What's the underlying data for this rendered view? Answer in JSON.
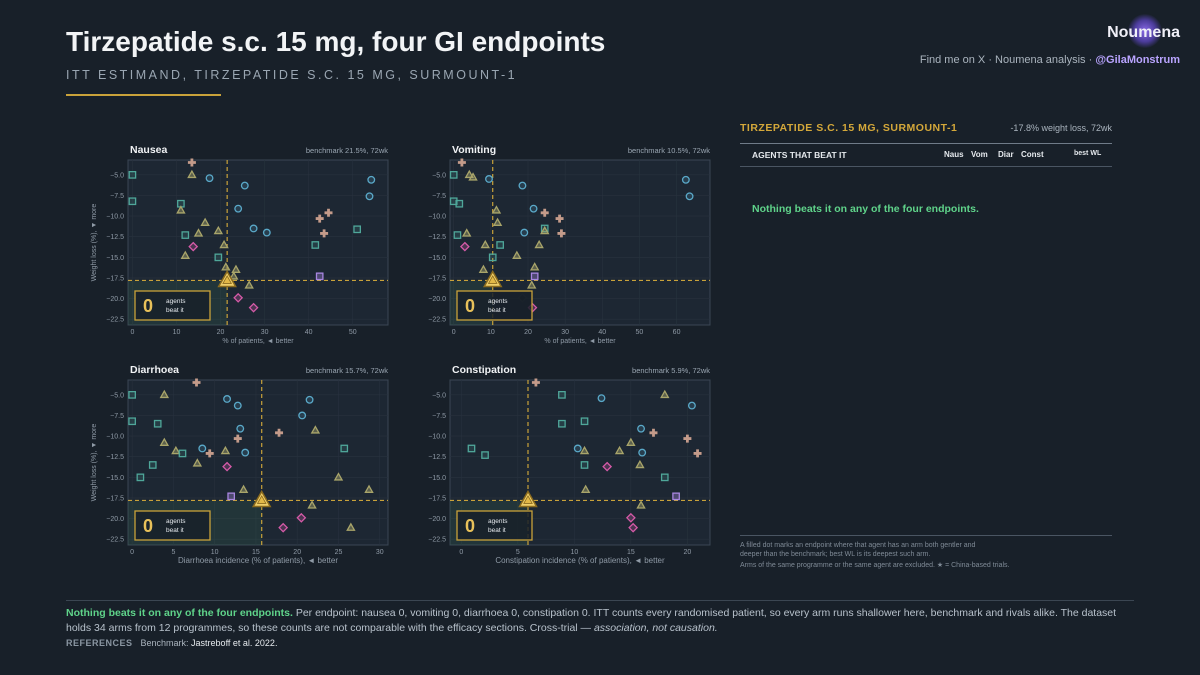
{
  "header": {
    "title": "Tirzepatide s.c. 15 mg,  four GI endpoints",
    "subtitle": "ITT ESTIMAND,  TIRZEPATIDE S.C. 15 MG, SURMOUNT-1",
    "brand": "Noumena",
    "byline_prefix": "Find me on X · Noumena analysis · ",
    "byline_handle": "@GilaMonstrum"
  },
  "colors": {
    "background": "#182029",
    "plot_bg": "#1d2733",
    "accent": "#c9a23a",
    "highlight_green": "#5fd38a",
    "teal": "#4fa79a",
    "blue": "#5aa9c9",
    "olive": "#a9a56a",
    "tan": "#c49b8a",
    "magenta": "#d65aa8",
    "purple": "#a886e0"
  },
  "right_panel": {
    "title": "TIRZEPATIDE S.C. 15 MG, SURMOUNT-1",
    "benchmark": "-17.8% weight loss, 72wk",
    "col_agents": "AGENTS THAT BEAT IT",
    "col_naus": "Naus",
    "col_vom": "Vom",
    "col_diar": "Diar",
    "col_const": "Const",
    "col_best": "best WL",
    "message": "Nothing beats it on any of the four endpoints.",
    "note_line1": "A filled dot marks an endpoint where that agent has an arm both gentler and",
    "note_line2": "deeper than the benchmark; best WL is its deepest such arm.",
    "note_line3": "Arms of the same programme or the same agent are excluded.  ★ = China-based trials."
  },
  "footer": {
    "highlight": "Nothing beats it on any of the four endpoints.",
    "text": "  Per endpoint: nausea 0, vomiting 0, diarrhoea 0, constipation 0.  ITT counts every randomised patient, so every arm runs shallower here, benchmark and rivals alike. The dataset holds 34 arms from 12 programmes, so these counts are not comparable with the efficacy sections. Cross-trial — ",
    "italic": "association, not causation.",
    "refs_label": "REFERENCES",
    "refs_prefix": "Benchmark: ",
    "refs_text": "Jastreboff et al. 2022."
  },
  "chart_data": [
    {
      "type": "scatter",
      "title": "Nausea",
      "benchmark_label": "benchmark 21.5%, 72wk",
      "xlabel": "% of patients, ◄ better",
      "ylabel": "Weight loss (%), ▼ more",
      "xlim": [
        -1,
        58
      ],
      "ylim": [
        -23.2,
        -3.2
      ],
      "xticks": [
        0,
        10,
        20,
        30,
        40,
        50
      ],
      "yticks": [
        -5.0,
        -7.5,
        -10.0,
        -12.5,
        -15.0,
        -17.5,
        -20.0,
        -22.5
      ],
      "benchmark": {
        "x": 21.5,
        "y": -17.8
      },
      "count": "0",
      "count_label_1": "agents",
      "count_label_2": "beat it",
      "points": [
        {
          "x": 13.5,
          "y": -3.5,
          "s": "cross",
          "c": "tan"
        },
        {
          "x": 13.5,
          "y": -5.0,
          "s": "tri",
          "c": "olive"
        },
        {
          "x": 0,
          "y": -5.0,
          "s": "sq",
          "c": "teal"
        },
        {
          "x": 0,
          "y": -8.2,
          "s": "sq",
          "c": "teal"
        },
        {
          "x": 11,
          "y": -8.5,
          "s": "sq",
          "c": "teal"
        },
        {
          "x": 11,
          "y": -9.3,
          "s": "tri",
          "c": "olive"
        },
        {
          "x": 17.5,
          "y": -5.4,
          "s": "circ",
          "c": "blue"
        },
        {
          "x": 25.5,
          "y": -6.3,
          "s": "circ",
          "c": "blue"
        },
        {
          "x": 54.2,
          "y": -5.6,
          "s": "circ",
          "c": "blue"
        },
        {
          "x": 53.8,
          "y": -7.6,
          "s": "circ",
          "c": "blue"
        },
        {
          "x": 24,
          "y": -9.1,
          "s": "circ",
          "c": "blue"
        },
        {
          "x": 16.5,
          "y": -10.8,
          "s": "tri",
          "c": "olive"
        },
        {
          "x": 19.5,
          "y": -11.8,
          "s": "tri",
          "c": "olive"
        },
        {
          "x": 15,
          "y": -12.1,
          "s": "tri",
          "c": "olive"
        },
        {
          "x": 12,
          "y": -12.3,
          "s": "sq",
          "c": "teal"
        },
        {
          "x": 27.5,
          "y": -11.5,
          "s": "circ",
          "c": "blue"
        },
        {
          "x": 30.5,
          "y": -12.0,
          "s": "circ",
          "c": "blue"
        },
        {
          "x": 42.5,
          "y": -10.3,
          "s": "cross",
          "c": "tan"
        },
        {
          "x": 44.5,
          "y": -9.6,
          "s": "cross",
          "c": "tan"
        },
        {
          "x": 43.5,
          "y": -12.1,
          "s": "cross",
          "c": "tan"
        },
        {
          "x": 51,
          "y": -11.6,
          "s": "sq",
          "c": "teal"
        },
        {
          "x": 41.5,
          "y": -13.5,
          "s": "sq",
          "c": "teal"
        },
        {
          "x": 13.8,
          "y": -13.7,
          "s": "dia",
          "c": "magenta"
        },
        {
          "x": 20.8,
          "y": -13.5,
          "s": "tri",
          "c": "olive"
        },
        {
          "x": 12,
          "y": -14.8,
          "s": "tri",
          "c": "olive"
        },
        {
          "x": 19.5,
          "y": -15.0,
          "s": "sq",
          "c": "teal"
        },
        {
          "x": 21.2,
          "y": -16.2,
          "s": "tri",
          "c": "olive"
        },
        {
          "x": 23.5,
          "y": -16.5,
          "s": "tri",
          "c": "olive"
        },
        {
          "x": 23,
          "y": -17.3,
          "s": "tri",
          "c": "olive"
        },
        {
          "x": 42.5,
          "y": -17.3,
          "s": "sq",
          "c": "purple"
        },
        {
          "x": 26.5,
          "y": -18.4,
          "s": "tri",
          "c": "olive"
        },
        {
          "x": 24,
          "y": -19.9,
          "s": "dia",
          "c": "magenta"
        },
        {
          "x": 27.5,
          "y": -21.1,
          "s": "dia",
          "c": "magenta"
        }
      ]
    },
    {
      "type": "scatter",
      "title": "Vomiting",
      "benchmark_label": "benchmark 10.5%, 72wk",
      "xlabel": "% of patients, ◄ better",
      "ylabel": "",
      "xlim": [
        -1,
        69
      ],
      "ylim": [
        -23.2,
        -3.2
      ],
      "xticks": [
        0,
        10,
        20,
        30,
        40,
        50,
        60
      ],
      "yticks": [
        -5.0,
        -7.5,
        -10.0,
        -12.5,
        -15.0,
        -17.5,
        -20.0,
        -22.5
      ],
      "benchmark": {
        "x": 10.5,
        "y": -17.8
      },
      "count": "0",
      "count_label_1": "agents",
      "count_label_2": "beat it",
      "points": [
        {
          "x": 2.2,
          "y": -3.5,
          "s": "cross",
          "c": "tan"
        },
        {
          "x": 0,
          "y": -5.0,
          "s": "sq",
          "c": "teal"
        },
        {
          "x": 4.2,
          "y": -5.0,
          "s": "tri",
          "c": "olive"
        },
        {
          "x": 5.2,
          "y": -5.3,
          "s": "tri",
          "c": "olive"
        },
        {
          "x": 18.5,
          "y": -6.3,
          "s": "circ",
          "c": "blue"
        },
        {
          "x": 9.5,
          "y": -5.5,
          "s": "circ",
          "c": "blue"
        },
        {
          "x": 62.5,
          "y": -5.6,
          "s": "circ",
          "c": "blue"
        },
        {
          "x": 63.5,
          "y": -7.6,
          "s": "circ",
          "c": "blue"
        },
        {
          "x": 0,
          "y": -8.2,
          "s": "sq",
          "c": "teal"
        },
        {
          "x": 1.5,
          "y": -8.5,
          "s": "sq",
          "c": "teal"
        },
        {
          "x": 21.5,
          "y": -9.1,
          "s": "circ",
          "c": "blue"
        },
        {
          "x": 11.5,
          "y": -9.3,
          "s": "tri",
          "c": "olive"
        },
        {
          "x": 24.5,
          "y": -9.6,
          "s": "cross",
          "c": "tan"
        },
        {
          "x": 28.5,
          "y": -10.3,
          "s": "cross",
          "c": "tan"
        },
        {
          "x": 11.8,
          "y": -10.8,
          "s": "tri",
          "c": "olive"
        },
        {
          "x": 24.5,
          "y": -11.5,
          "s": "sq",
          "c": "teal"
        },
        {
          "x": 24.5,
          "y": -11.8,
          "s": "tri",
          "c": "olive"
        },
        {
          "x": 29,
          "y": -12.1,
          "s": "cross",
          "c": "tan"
        },
        {
          "x": 19,
          "y": -12.0,
          "s": "circ",
          "c": "blue"
        },
        {
          "x": 1,
          "y": -12.3,
          "s": "sq",
          "c": "teal"
        },
        {
          "x": 3.5,
          "y": -12.1,
          "s": "tri",
          "c": "olive"
        },
        {
          "x": 12.5,
          "y": -13.5,
          "s": "sq",
          "c": "teal"
        },
        {
          "x": 3,
          "y": -13.7,
          "s": "dia",
          "c": "magenta"
        },
        {
          "x": 23,
          "y": -13.5,
          "s": "tri",
          "c": "olive"
        },
        {
          "x": 8.5,
          "y": -13.5,
          "s": "tri",
          "c": "olive"
        },
        {
          "x": 17,
          "y": -14.8,
          "s": "tri",
          "c": "olive"
        },
        {
          "x": 10.5,
          "y": -15.0,
          "s": "sq",
          "c": "teal"
        },
        {
          "x": 8,
          "y": -16.5,
          "s": "tri",
          "c": "olive"
        },
        {
          "x": 21.8,
          "y": -16.2,
          "s": "tri",
          "c": "olive"
        },
        {
          "x": 21.8,
          "y": -17.3,
          "s": "sq",
          "c": "purple"
        },
        {
          "x": 21,
          "y": -18.4,
          "s": "tri",
          "c": "olive"
        },
        {
          "x": 18.5,
          "y": -19.9,
          "s": "dia",
          "c": "dark"
        },
        {
          "x": 21.2,
          "y": -21.1,
          "s": "dia",
          "c": "magenta"
        }
      ]
    },
    {
      "type": "scatter",
      "title": "Diarrhoea",
      "benchmark_label": "benchmark 15.7%, 72wk",
      "xlabel": "Diarrhoea incidence (% of patients), ◄ better",
      "ylabel": "Weight loss (%), ▼ more",
      "xlim": [
        -0.5,
        31
      ],
      "ylim": [
        -23.2,
        -3.2
      ],
      "xticks": [
        0,
        5,
        10,
        15,
        20,
        25,
        30
      ],
      "yticks": [
        -5.0,
        -7.5,
        -10.0,
        -12.5,
        -15.0,
        -17.5,
        -20.0,
        -22.5
      ],
      "benchmark": {
        "x": 15.7,
        "y": -17.8
      },
      "count": "0",
      "count_label_1": "agents",
      "count_label_2": "beat it",
      "points": [
        {
          "x": 7.8,
          "y": -3.5,
          "s": "cross",
          "c": "tan"
        },
        {
          "x": 0,
          "y": -5.0,
          "s": "sq",
          "c": "teal"
        },
        {
          "x": 3.9,
          "y": -5.0,
          "s": "tri",
          "c": "olive"
        },
        {
          "x": 11.5,
          "y": -5.5,
          "s": "circ",
          "c": "blue"
        },
        {
          "x": 12.8,
          "y": -6.3,
          "s": "circ",
          "c": "blue"
        },
        {
          "x": 21.5,
          "y": -5.6,
          "s": "circ",
          "c": "blue"
        },
        {
          "x": 20.6,
          "y": -7.5,
          "s": "circ",
          "c": "blue"
        },
        {
          "x": 0,
          "y": -8.2,
          "s": "sq",
          "c": "teal"
        },
        {
          "x": 3.1,
          "y": -8.5,
          "s": "sq",
          "c": "teal"
        },
        {
          "x": 13.1,
          "y": -9.1,
          "s": "circ",
          "c": "blue"
        },
        {
          "x": 22.2,
          "y": -9.3,
          "s": "tri",
          "c": "olive"
        },
        {
          "x": 17.8,
          "y": -9.6,
          "s": "cross",
          "c": "tan"
        },
        {
          "x": 12.8,
          "y": -10.3,
          "s": "cross",
          "c": "tan"
        },
        {
          "x": 3.9,
          "y": -10.8,
          "s": "tri",
          "c": "olive"
        },
        {
          "x": 8.5,
          "y": -11.5,
          "s": "circ",
          "c": "blue"
        },
        {
          "x": 5.3,
          "y": -11.8,
          "s": "tri",
          "c": "olive"
        },
        {
          "x": 9.4,
          "y": -12.1,
          "s": "cross",
          "c": "tan"
        },
        {
          "x": 11.3,
          "y": -11.8,
          "s": "tri",
          "c": "olive"
        },
        {
          "x": 6.1,
          "y": -12.1,
          "s": "sq",
          "c": "teal"
        },
        {
          "x": 13.7,
          "y": -12.0,
          "s": "circ",
          "c": "blue"
        },
        {
          "x": 25.7,
          "y": -11.5,
          "s": "sq",
          "c": "teal"
        },
        {
          "x": 7.9,
          "y": -13.3,
          "s": "tri",
          "c": "olive"
        },
        {
          "x": 11.5,
          "y": -13.7,
          "s": "dia",
          "c": "magenta"
        },
        {
          "x": 2.5,
          "y": -13.5,
          "s": "sq",
          "c": "teal"
        },
        {
          "x": 1,
          "y": -15.0,
          "s": "sq",
          "c": "teal"
        },
        {
          "x": 25,
          "y": -15.0,
          "s": "tri",
          "c": "olive"
        },
        {
          "x": 13.5,
          "y": -16.5,
          "s": "tri",
          "c": "olive"
        },
        {
          "x": 28.7,
          "y": -16.5,
          "s": "tri",
          "c": "olive"
        },
        {
          "x": 12,
          "y": -17.3,
          "s": "sq",
          "c": "purple"
        },
        {
          "x": 21.8,
          "y": -18.4,
          "s": "tri",
          "c": "olive"
        },
        {
          "x": 20.5,
          "y": -19.9,
          "s": "dia",
          "c": "magenta"
        },
        {
          "x": 18.3,
          "y": -21.1,
          "s": "dia",
          "c": "magenta"
        },
        {
          "x": 26.5,
          "y": -21.1,
          "s": "tri",
          "c": "olive"
        }
      ]
    },
    {
      "type": "scatter",
      "title": "Constipation",
      "benchmark_label": "benchmark 5.9%, 72wk",
      "xlabel": "Constipation incidence (% of patients), ◄ better",
      "ylabel": "",
      "xlim": [
        -1,
        22
      ],
      "ylim": [
        -23.2,
        -3.2
      ],
      "xticks": [
        0,
        5,
        10,
        15,
        20
      ],
      "yticks": [
        -5.0,
        -7.5,
        -10.0,
        -12.5,
        -15.0,
        -17.5,
        -20.0,
        -22.5
      ],
      "benchmark": {
        "x": 5.9,
        "y": -17.8
      },
      "count": "0",
      "count_label_1": "agents",
      "count_label_2": "beat it",
      "points": [
        {
          "x": 6.6,
          "y": -3.5,
          "s": "cross",
          "c": "tan"
        },
        {
          "x": 8.9,
          "y": -5.0,
          "s": "sq",
          "c": "teal"
        },
        {
          "x": 18,
          "y": -5.0,
          "s": "tri",
          "c": "olive"
        },
        {
          "x": 12.4,
          "y": -5.4,
          "s": "circ",
          "c": "blue"
        },
        {
          "x": 20.4,
          "y": -6.3,
          "s": "circ",
          "c": "blue"
        },
        {
          "x": 8.9,
          "y": -8.5,
          "s": "sq",
          "c": "teal"
        },
        {
          "x": 10.9,
          "y": -8.2,
          "s": "sq",
          "c": "teal"
        },
        {
          "x": 15.9,
          "y": -9.1,
          "s": "circ",
          "c": "blue"
        },
        {
          "x": 17,
          "y": -9.6,
          "s": "cross",
          "c": "tan"
        },
        {
          "x": 20,
          "y": -10.3,
          "s": "cross",
          "c": "tan"
        },
        {
          "x": 15,
          "y": -10.8,
          "s": "tri",
          "c": "olive"
        },
        {
          "x": 10.3,
          "y": -11.5,
          "s": "circ",
          "c": "blue"
        },
        {
          "x": 0.9,
          "y": -11.5,
          "s": "sq",
          "c": "teal"
        },
        {
          "x": 10.9,
          "y": -11.8,
          "s": "tri",
          "c": "olive"
        },
        {
          "x": 14,
          "y": -11.8,
          "s": "tri",
          "c": "olive"
        },
        {
          "x": 16,
          "y": -12.0,
          "s": "circ",
          "c": "blue"
        },
        {
          "x": 20.9,
          "y": -12.1,
          "s": "cross",
          "c": "tan"
        },
        {
          "x": 2.1,
          "y": -12.3,
          "s": "sq",
          "c": "teal"
        },
        {
          "x": 10.9,
          "y": -13.5,
          "s": "sq",
          "c": "teal"
        },
        {
          "x": 12.9,
          "y": -13.7,
          "s": "dia",
          "c": "magenta"
        },
        {
          "x": 15.8,
          "y": -13.5,
          "s": "tri",
          "c": "olive"
        },
        {
          "x": 18,
          "y": -15.0,
          "s": "sq",
          "c": "teal"
        },
        {
          "x": 11,
          "y": -16.5,
          "s": "tri",
          "c": "olive"
        },
        {
          "x": 19,
          "y": -17.3,
          "s": "sq",
          "c": "purple"
        },
        {
          "x": 15.9,
          "y": -18.4,
          "s": "tri",
          "c": "olive"
        },
        {
          "x": 15,
          "y": -19.9,
          "s": "dia",
          "c": "magenta"
        },
        {
          "x": 15.2,
          "y": -21.1,
          "s": "dia",
          "c": "magenta"
        }
      ]
    }
  ]
}
